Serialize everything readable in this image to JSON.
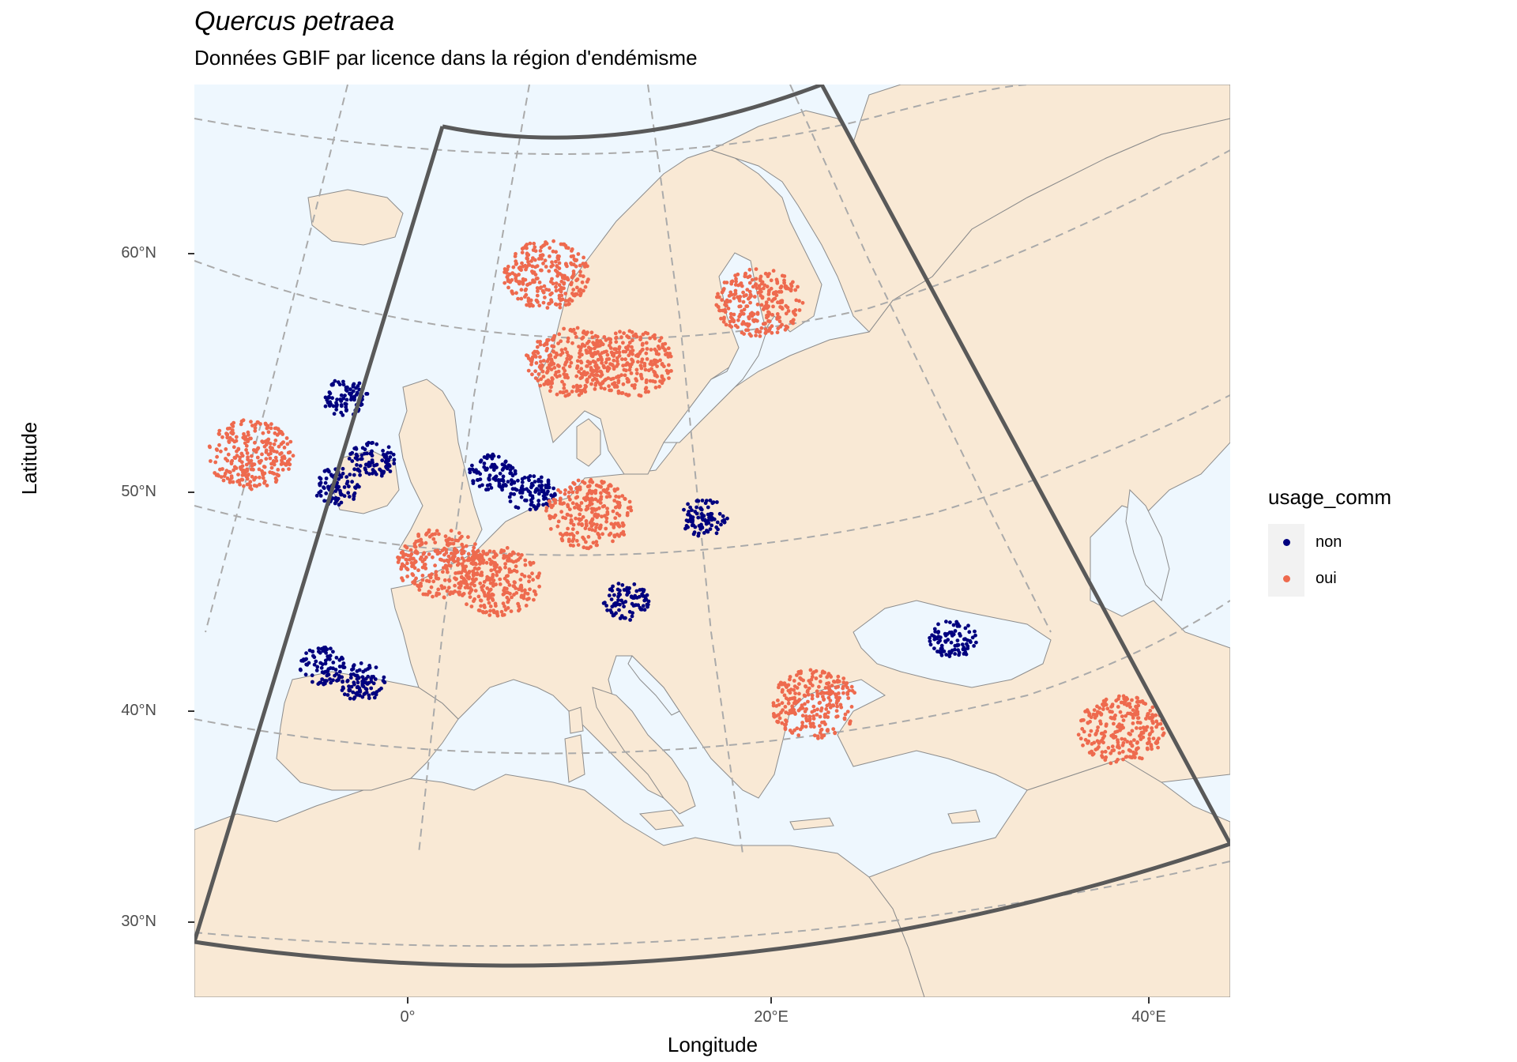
{
  "title": "Quercus petraea",
  "subtitle": "Données GBIF par licence dans la région d'endémisme",
  "axes": {
    "xlabel": "Longitude",
    "ylabel": "Latitude",
    "xticks": [
      "0°",
      "20°E",
      "40°E"
    ],
    "yticks": [
      "60°N",
      "50°N",
      "40°N",
      "30°N"
    ]
  },
  "legend": {
    "title": "usage_comm",
    "items": [
      {
        "label": "non",
        "color": "#00007f"
      },
      {
        "label": "oui",
        "color": "#ee6a4e"
      }
    ],
    "placement": "right"
  },
  "colors": {
    "sea": "#eef7fe",
    "land": "#f9e9d5",
    "border": "#8c8c8c",
    "graticule": "#aaaaaa",
    "region_outline": "#595959"
  },
  "chart_data": {
    "type": "scatter",
    "map_projection": "conic (Lambert-style), graticule every 20° longitude / 10° latitude",
    "xlim": [
      "-12°",
      "44°E"
    ],
    "ylim": [
      "27°N",
      "66°N"
    ],
    "legend_placement": "right",
    "series": [
      {
        "name": "non",
        "description_hotspots": [
          {
            "lon": -2,
            "lat": 55
          },
          {
            "lon": -1,
            "lat": 52
          },
          {
            "lon": -3,
            "lat": 51
          },
          {
            "lon": 5,
            "lat": 51
          },
          {
            "lon": 7,
            "lat": 50
          },
          {
            "lon": -5,
            "lat": 43
          },
          {
            "lon": -3,
            "lat": 42
          },
          {
            "lon": 30,
            "lat": 45
          },
          {
            "lon": 12,
            "lat": 45
          },
          {
            "lon": 16,
            "lat": 49
          }
        ]
      },
      {
        "name": "oui",
        "description_hotspots": [
          {
            "lon": 2,
            "lat": 47
          },
          {
            "lon": 5,
            "lat": 46
          },
          {
            "lon": 10,
            "lat": 49
          },
          {
            "lon": 12,
            "lat": 56
          },
          {
            "lon": 9,
            "lat": 56
          },
          {
            "lon": -7,
            "lat": 53
          },
          {
            "lon": 18,
            "lat": 59
          },
          {
            "lon": 8,
            "lat": 60
          },
          {
            "lon": 40,
            "lat": 43
          },
          {
            "lon": 23,
            "lat": 41
          }
        ]
      }
    ]
  }
}
